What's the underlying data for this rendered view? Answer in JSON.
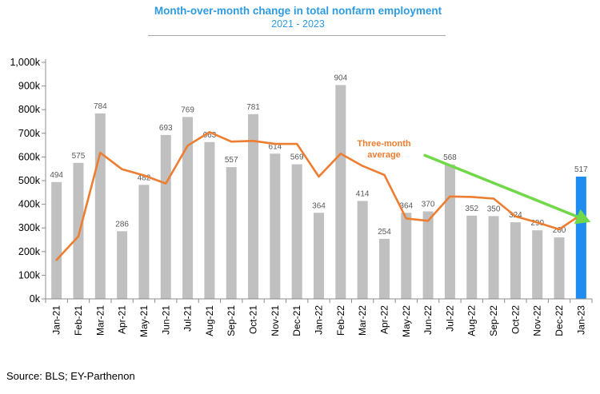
{
  "chart_data": {
    "type": "bar",
    "title": "Month-over-month change in total nonfarm employment",
    "subtitle": "2021 - 2023",
    "ylim": [
      0,
      1000
    ],
    "yticks": [
      0,
      100,
      200,
      300,
      400,
      500,
      600,
      700,
      800,
      900,
      1000
    ],
    "ytick_labels": [
      "0k",
      "100k",
      "200k",
      "300k",
      "400k",
      "500k",
      "600k",
      "700k",
      "800k",
      "900k",
      "1,000k"
    ],
    "categories": [
      "Jan-21",
      "Feb-21",
      "Mar-21",
      "Apr-21",
      "May-21",
      "Jun-21",
      "Jul-21",
      "Aug-21",
      "Sep-21",
      "Oct-21",
      "Nov-21",
      "Dec-21",
      "Jan-22",
      "Feb-22",
      "Mar-22",
      "Apr-22",
      "May-22",
      "Jun-22",
      "Jul-22",
      "Aug-22",
      "Sep-22",
      "Oct-22",
      "Nov-22",
      "Dec-22",
      "Jan-23"
    ],
    "series": [
      {
        "type": "bar",
        "values": [
          494,
          575,
          784,
          286,
          482,
          693,
          769,
          663,
          557,
          781,
          614,
          569,
          364,
          904,
          414,
          254,
          364,
          370,
          568,
          352,
          350,
          324,
          290,
          260,
          517
        ],
        "color": "#c0c0c0",
        "highlight_color": "#1e8cf0",
        "highlight_index": 24
      },
      {
        "name": "Three-month average",
        "type": "line",
        "values": [
          165,
          265,
          618,
          548,
          522,
          488,
          648,
          705,
          665,
          668,
          655,
          655,
          517,
          614,
          562,
          524,
          340,
          330,
          433,
          431,
          424,
          349,
          323,
          294,
          356
        ],
        "color": "#ed7d31"
      }
    ],
    "annotations": [
      {
        "text_lines": [
          "Three-month",
          "average"
        ],
        "color": "#ed7d31"
      },
      {
        "type": "arrow",
        "color": "#71d849",
        "from": {
          "x": "Jun-22",
          "y": 607
        },
        "to": {
          "x": "Jan-23",
          "y": 325
        }
      }
    ],
    "grid": false,
    "source": "Source: BLS; EY-Parthenon"
  }
}
